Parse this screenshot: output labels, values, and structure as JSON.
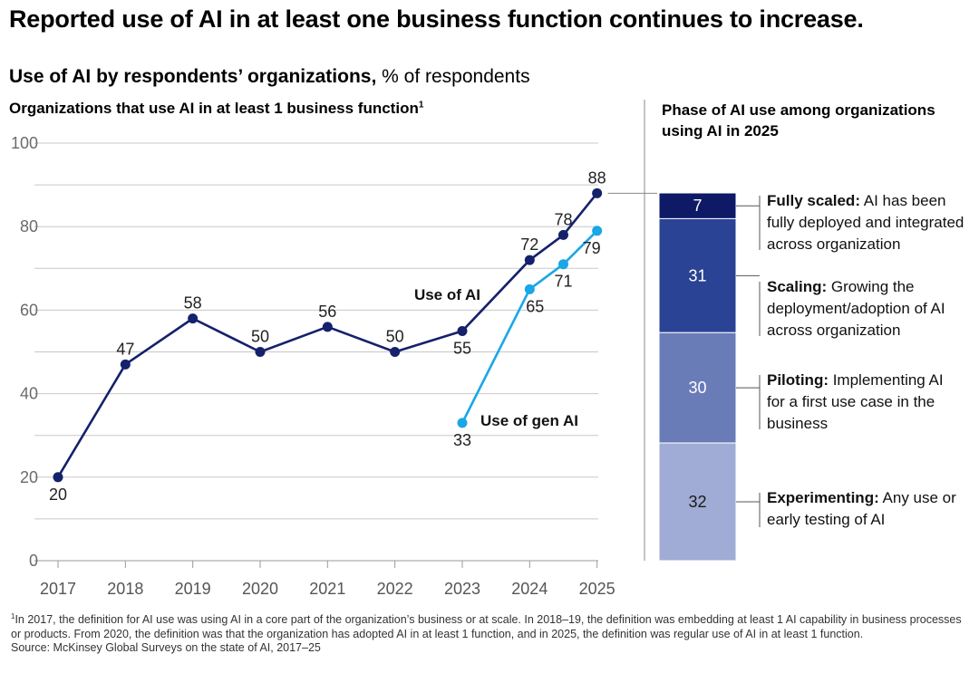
{
  "headline": "Reported use of AI in at least one business function continues to increase.",
  "subtitle": {
    "bold": "Use of AI by respondents’ organizations,",
    "normal": " % of respondents"
  },
  "left_chart": {
    "title": "Organizations that use AI in at least 1 business function",
    "title_footnote_marker": "1"
  },
  "right_chart": {
    "title": "Phase of AI use among organizations using AI in 2025"
  },
  "chart_data": [
    {
      "type": "line",
      "x": [
        "2017",
        "2018",
        "2019",
        "2020",
        "2021",
        "2022",
        "2023",
        "2024",
        "2024.5",
        "2025"
      ],
      "x_tick_labels": [
        "2017",
        "2018",
        "2019",
        "2020",
        "2021",
        "2022",
        "2023",
        "2024",
        "2025"
      ],
      "ylim": [
        0,
        100
      ],
      "y_ticks": [
        0,
        20,
        40,
        60,
        80,
        100
      ],
      "grid": true,
      "series": [
        {
          "name": "Use of AI",
          "color": "#14216b",
          "points": [
            {
              "x": "2017",
              "y": 20,
              "label": "20"
            },
            {
              "x": "2018",
              "y": 47,
              "label": "47"
            },
            {
              "x": "2019",
              "y": 58,
              "label": "58"
            },
            {
              "x": "2020",
              "y": 50,
              "label": "50"
            },
            {
              "x": "2021",
              "y": 56,
              "label": "56"
            },
            {
              "x": "2022",
              "y": 50,
              "label": "50"
            },
            {
              "x": "2023",
              "y": 55,
              "label": "55"
            },
            {
              "x": "2024",
              "y": 72,
              "label": "72"
            },
            {
              "x": "2024.5",
              "y": 78,
              "label": "78"
            },
            {
              "x": "2025",
              "y": 88,
              "label": "88"
            }
          ]
        },
        {
          "name": "Use of gen AI",
          "color": "#19a7e6",
          "points": [
            {
              "x": "2023",
              "y": 33,
              "label": "33"
            },
            {
              "x": "2024",
              "y": 65,
              "label": "65"
            },
            {
              "x": "2024.5",
              "y": 71,
              "label": "71"
            },
            {
              "x": "2025",
              "y": 79,
              "label": "79"
            }
          ]
        }
      ]
    },
    {
      "type": "bar",
      "stacked": true,
      "segments": [
        {
          "value": 7,
          "label": "7",
          "color": "#0e1a66",
          "term": "Fully scaled:",
          "desc": "AI has been fully deployed and integrated across organization"
        },
        {
          "value": 31,
          "label": "31",
          "color": "#2b4394",
          "term": "Scaling:",
          "desc": "Growing the deployment/adoption of AI across organization"
        },
        {
          "value": 30,
          "label": "30",
          "color": "#6a7cb8",
          "term": "Piloting:",
          "desc": "Implementing AI for a first use case in the business"
        },
        {
          "value": 32,
          "label": "32",
          "color": "#a0acd5",
          "term": "Experimenting:",
          "desc": "Any use or early testing of AI"
        }
      ]
    }
  ],
  "footnote": {
    "marker": "1",
    "text": "In 2017, the definition for AI use was using AI in a core part of the organization’s business or at scale. In 2018–19, the definition was embedding at least 1 AI capability in business processes or products. From 2020, the definition was that the organization has adopted AI in at least 1 function, and in 2025, the definition was regular use of AI in at least 1 function.",
    "source": "Source: McKinsey Global Surveys on the state of AI, 2017–25"
  }
}
